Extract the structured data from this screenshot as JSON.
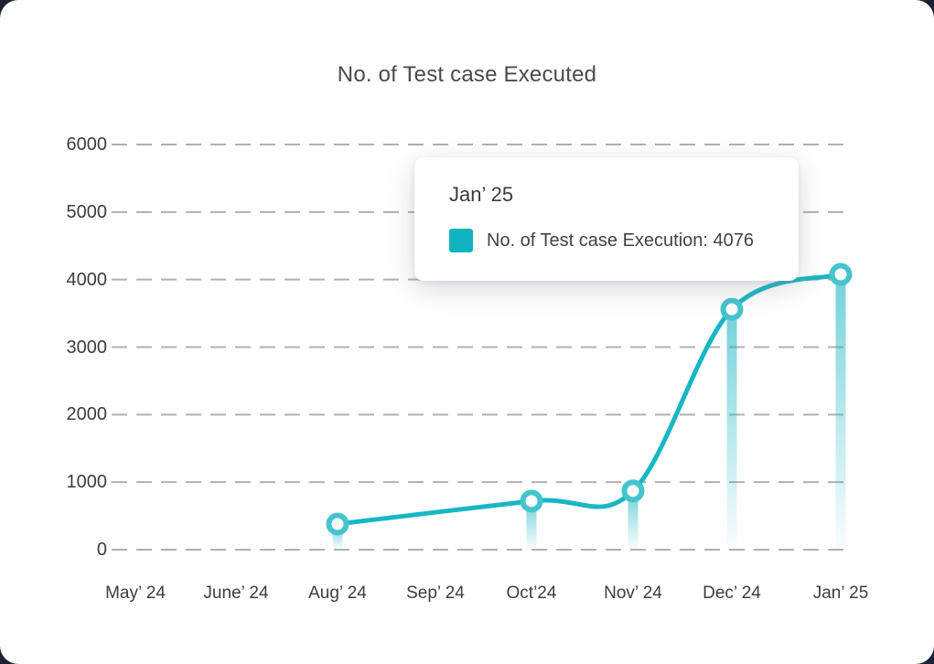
{
  "accent_color": "#19b6c3",
  "chart_data": {
    "type": "line",
    "title": "No. of Test case Executed",
    "categories": [
      "May’ 24",
      "June’ 24",
      "Aug’ 24",
      "Sep’ 24",
      "Oct’24",
      "Nov’ 24",
      "Dec’ 24",
      "Jan’ 25"
    ],
    "series": [
      {
        "name": "No. of Test case Execution",
        "color": "#19b6c3",
        "marker_ring_color": "#45c4cd",
        "drop_color": "#1bb6c3",
        "values": [
          null,
          null,
          380,
          null,
          720,
          870,
          3560,
          4076
        ]
      }
    ],
    "xlabel": "",
    "ylabel": "",
    "ylim": [
      0,
      6000
    ],
    "yticks": [
      0,
      1000,
      2000,
      3000,
      4000,
      5000,
      6000
    ],
    "grid": "horizontal-dashed",
    "grid_color": "#b0b0b0",
    "legend_position": "none",
    "smooth": true,
    "marker": "open-circle"
  },
  "tooltip": {
    "title": "Jan’ 25",
    "series": "No. of Test case Execution",
    "value": 4076,
    "text": "No. of Test case Execution: 4076",
    "swatch_color": "#10b3c0"
  }
}
